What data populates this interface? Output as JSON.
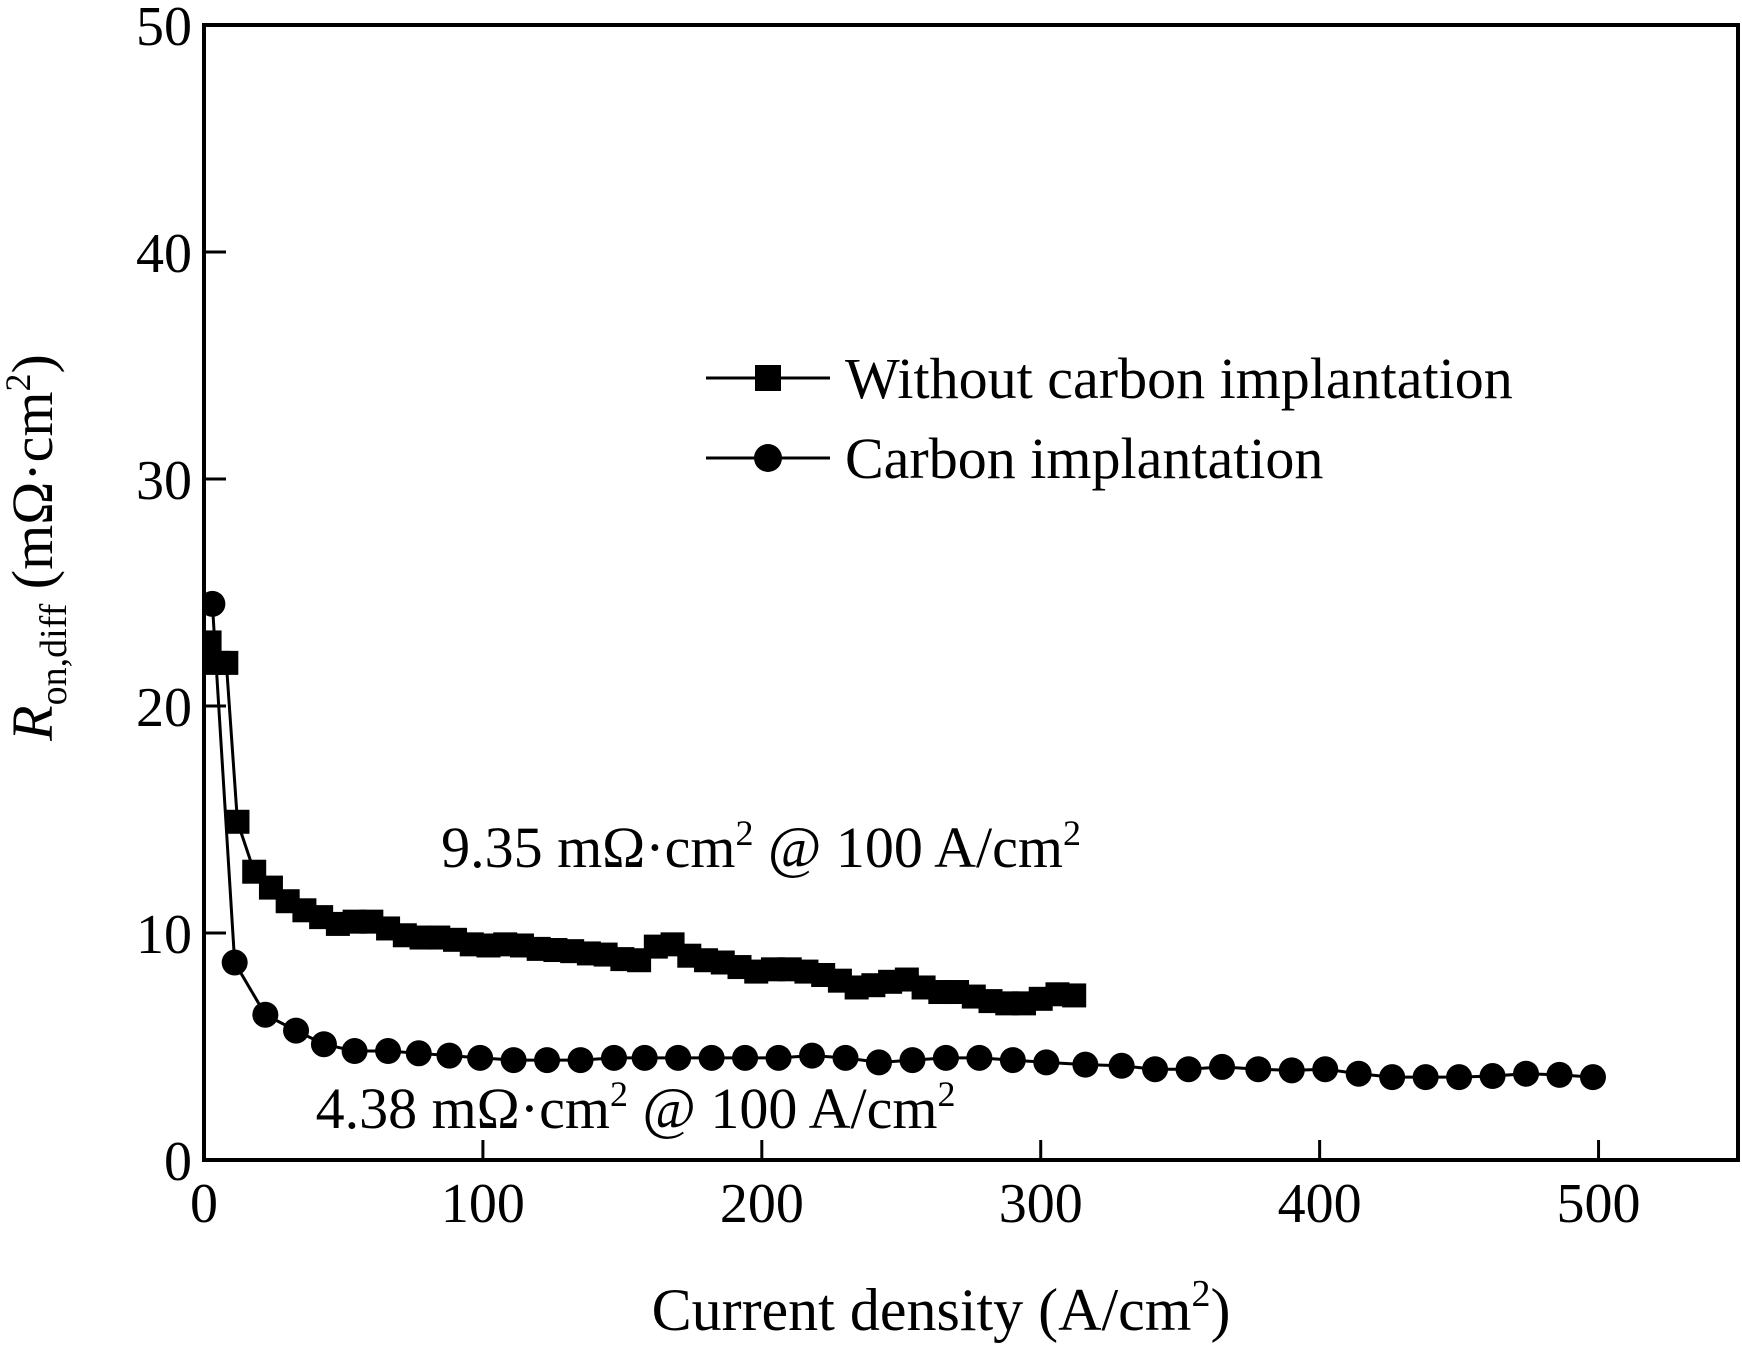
{
  "chart_data": {
    "type": "line",
    "xlabel": "Current density (A/cm²)",
    "ylabel": "R_on,diff (mΩ·cm²)",
    "ylabel_parts": {
      "symbol": "R",
      "subscript": "on,diff",
      "unit_open": " (mΩ·cm",
      "unit_sup": "2",
      "unit_close": ")"
    },
    "xlim": [
      0,
      550
    ],
    "ylim": [
      0,
      50
    ],
    "x_ticks": [
      0,
      100,
      200,
      300,
      400,
      500
    ],
    "y_ticks": [
      0,
      10,
      20,
      30,
      40,
      50
    ],
    "grid": false,
    "legend_position": "upper-right",
    "series": [
      {
        "name": "Without carbon implantation",
        "marker": "square",
        "color": "#000000",
        "points": [
          [
            2,
            22.8
          ],
          [
            5,
            21.9
          ],
          [
            8,
            21.9
          ],
          [
            12,
            14.9
          ],
          [
            18,
            12.7
          ],
          [
            24,
            12.0
          ],
          [
            30,
            11.4
          ],
          [
            36,
            11.0
          ],
          [
            42,
            10.7
          ],
          [
            48,
            10.4
          ],
          [
            54,
            10.5
          ],
          [
            60,
            10.5
          ],
          [
            66,
            10.2
          ],
          [
            72,
            9.9
          ],
          [
            78,
            9.8
          ],
          [
            84,
            9.8
          ],
          [
            90,
            9.7
          ],
          [
            96,
            9.5
          ],
          [
            102,
            9.45
          ],
          [
            108,
            9.5
          ],
          [
            114,
            9.45
          ],
          [
            120,
            9.3
          ],
          [
            126,
            9.25
          ],
          [
            132,
            9.2
          ],
          [
            138,
            9.1
          ],
          [
            144,
            9.05
          ],
          [
            150,
            8.85
          ],
          [
            156,
            8.8
          ],
          [
            162,
            9.4
          ],
          [
            168,
            9.5
          ],
          [
            174,
            9.0
          ],
          [
            180,
            8.8
          ],
          [
            186,
            8.7
          ],
          [
            192,
            8.5
          ],
          [
            198,
            8.3
          ],
          [
            204,
            8.4
          ],
          [
            210,
            8.4
          ],
          [
            216,
            8.3
          ],
          [
            222,
            8.15
          ],
          [
            228,
            7.9
          ],
          [
            234,
            7.6
          ],
          [
            240,
            7.7
          ],
          [
            246,
            7.85
          ],
          [
            252,
            7.95
          ],
          [
            258,
            7.6
          ],
          [
            264,
            7.4
          ],
          [
            270,
            7.4
          ],
          [
            276,
            7.2
          ],
          [
            282,
            7.0
          ],
          [
            288,
            6.9
          ],
          [
            294,
            6.9
          ],
          [
            300,
            7.1
          ],
          [
            306,
            7.3
          ],
          [
            312,
            7.25
          ]
        ]
      },
      {
        "name": "Carbon implantation",
        "marker": "circle",
        "color": "#000000",
        "points": [
          [
            3,
            24.5
          ],
          [
            11,
            8.7
          ],
          [
            22,
            6.4
          ],
          [
            33,
            5.7
          ],
          [
            43,
            5.1
          ],
          [
            54,
            4.8
          ],
          [
            66,
            4.8
          ],
          [
            77,
            4.7
          ],
          [
            88,
            4.6
          ],
          [
            99,
            4.5
          ],
          [
            111,
            4.4
          ],
          [
            123,
            4.4
          ],
          [
            135,
            4.4
          ],
          [
            147,
            4.5
          ],
          [
            158,
            4.5
          ],
          [
            170,
            4.5
          ],
          [
            182,
            4.5
          ],
          [
            194,
            4.5
          ],
          [
            206,
            4.5
          ],
          [
            218,
            4.6
          ],
          [
            230,
            4.5
          ],
          [
            242,
            4.3
          ],
          [
            254,
            4.4
          ],
          [
            266,
            4.5
          ],
          [
            278,
            4.5
          ],
          [
            290,
            4.4
          ],
          [
            302,
            4.3
          ],
          [
            316,
            4.2
          ],
          [
            329,
            4.15
          ],
          [
            341,
            4.0
          ],
          [
            353,
            4.0
          ],
          [
            365,
            4.1
          ],
          [
            378,
            4.0
          ],
          [
            390,
            3.95
          ],
          [
            402,
            4.0
          ],
          [
            414,
            3.8
          ],
          [
            426,
            3.65
          ],
          [
            438,
            3.65
          ],
          [
            450,
            3.65
          ],
          [
            462,
            3.7
          ],
          [
            474,
            3.8
          ],
          [
            486,
            3.75
          ],
          [
            498,
            3.65
          ]
        ]
      }
    ],
    "annotations": [
      {
        "text": "9.35 mΩ·cm² @ 100 A/cm²",
        "x": 85,
        "y": 12.9,
        "parts": [
          "9.35 mΩ·cm",
          "2",
          " @ 100 A/cm",
          "2"
        ]
      },
      {
        "text": "4.38 mΩ·cm² @ 100 A/cm²",
        "x": 40,
        "y": 1.4,
        "parts": [
          "4.38 mΩ·cm",
          "2",
          " @ 100 A/cm",
          "2"
        ]
      }
    ]
  }
}
